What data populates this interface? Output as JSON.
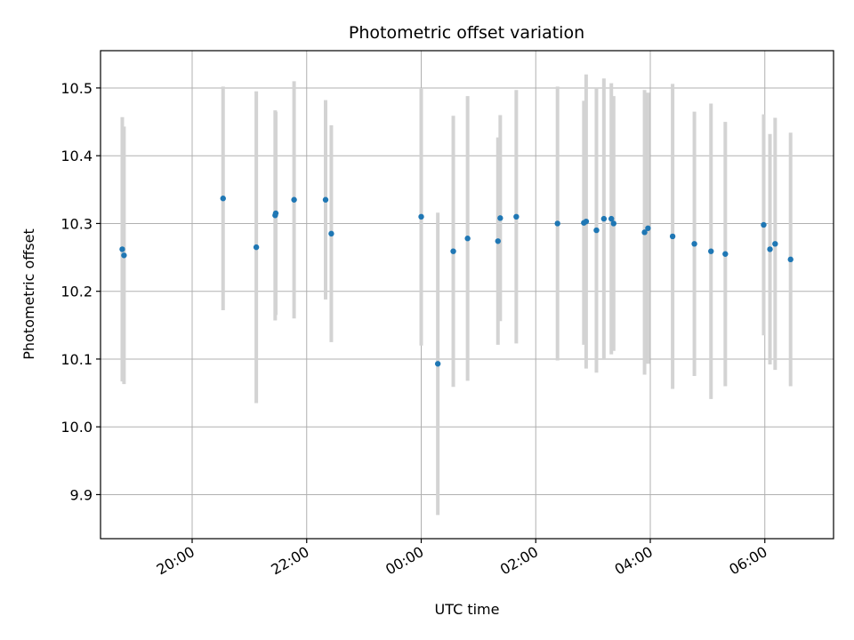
{
  "chart_data": {
    "type": "scatter",
    "title": "Photometric offset variation",
    "xlabel": "UTC time",
    "ylabel": "Photometric offset",
    "x_unit": "hours since 00:00 UTC",
    "xlim": [
      -5.6,
      7.2
    ],
    "ylim": [
      9.835,
      10.555
    ],
    "x_ticks": [
      {
        "value": -4,
        "label": "20:00"
      },
      {
        "value": -2,
        "label": "22:00"
      },
      {
        "value": 0,
        "label": "00:00"
      },
      {
        "value": 2,
        "label": "02:00"
      },
      {
        "value": 4,
        "label": "04:00"
      },
      {
        "value": 6,
        "label": "06:00"
      }
    ],
    "y_ticks": [
      {
        "value": 9.9,
        "label": "9.9"
      },
      {
        "value": 10.0,
        "label": "10.0"
      },
      {
        "value": 10.1,
        "label": "10.1"
      },
      {
        "value": 10.2,
        "label": "10.2"
      },
      {
        "value": 10.3,
        "label": "10.3"
      },
      {
        "value": 10.4,
        "label": "10.4"
      },
      {
        "value": 10.5,
        "label": "10.5"
      }
    ],
    "grid": true,
    "colors": {
      "point": "#1f77b4",
      "errorbar": "#d3d3d3"
    },
    "series": [
      {
        "points": [
          {
            "x": -5.22,
            "y": 10.262,
            "err": 0.195
          },
          {
            "x": -5.19,
            "y": 10.253,
            "err": 0.19
          },
          {
            "x": -3.46,
            "y": 10.337,
            "err": 0.165
          },
          {
            "x": -2.88,
            "y": 10.265,
            "err": 0.23
          },
          {
            "x": -2.55,
            "y": 10.312,
            "err": 0.155
          },
          {
            "x": -2.54,
            "y": 10.315,
            "err": 0.15
          },
          {
            "x": -2.22,
            "y": 10.335,
            "err": 0.175
          },
          {
            "x": -1.67,
            "y": 10.335,
            "err": 0.147
          },
          {
            "x": -1.57,
            "y": 10.285,
            "err": 0.16
          },
          {
            "x": 0.0,
            "y": 10.31,
            "err": 0.19
          },
          {
            "x": 0.29,
            "y": 10.093,
            "err": 0.223
          },
          {
            "x": 0.56,
            "y": 10.259,
            "err": 0.2
          },
          {
            "x": 0.81,
            "y": 10.278,
            "err": 0.21
          },
          {
            "x": 1.34,
            "y": 10.274,
            "err": 0.153
          },
          {
            "x": 1.38,
            "y": 10.308,
            "err": 0.152
          },
          {
            "x": 1.66,
            "y": 10.31,
            "err": 0.187
          },
          {
            "x": 2.38,
            "y": 10.3,
            "err": 0.202
          },
          {
            "x": 2.84,
            "y": 10.301,
            "err": 0.18
          },
          {
            "x": 2.88,
            "y": 10.303,
            "err": 0.217
          },
          {
            "x": 3.06,
            "y": 10.29,
            "err": 0.21
          },
          {
            "x": 3.19,
            "y": 10.307,
            "err": 0.207
          },
          {
            "x": 3.32,
            "y": 10.307,
            "err": 0.2
          },
          {
            "x": 3.36,
            "y": 10.3,
            "err": 0.188
          },
          {
            "x": 3.9,
            "y": 10.287,
            "err": 0.21
          },
          {
            "x": 3.96,
            "y": 10.293,
            "err": 0.2
          },
          {
            "x": 4.39,
            "y": 10.281,
            "err": 0.225
          },
          {
            "x": 4.77,
            "y": 10.27,
            "err": 0.195
          },
          {
            "x": 5.06,
            "y": 10.259,
            "err": 0.218
          },
          {
            "x": 5.31,
            "y": 10.255,
            "err": 0.195
          },
          {
            "x": 5.98,
            "y": 10.298,
            "err": 0.163
          },
          {
            "x": 6.09,
            "y": 10.262,
            "err": 0.17
          },
          {
            "x": 6.18,
            "y": 10.27,
            "err": 0.186
          },
          {
            "x": 6.45,
            "y": 10.247,
            "err": 0.187
          }
        ]
      }
    ]
  }
}
